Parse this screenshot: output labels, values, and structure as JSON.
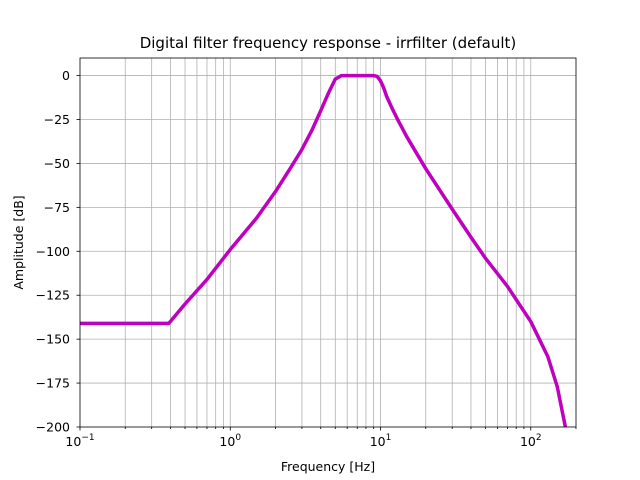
{
  "chart_data": {
    "type": "line",
    "title": "Digital filter frequency response - irrfilter (default)",
    "xlabel": "Frequency [Hz]",
    "ylabel": "Amplitude [dB]",
    "xscale": "log",
    "xlim": [
      0.1,
      200
    ],
    "ylim": [
      -200,
      10
    ],
    "grid": "on (major and minor on x, major on y)",
    "x_ticks": [
      {
        "value": 0.1,
        "base": "10",
        "exp": "−1"
      },
      {
        "value": 1,
        "base": "10",
        "exp": "0"
      },
      {
        "value": 10,
        "base": "10",
        "exp": "1"
      },
      {
        "value": 100,
        "base": "10",
        "exp": "2"
      }
    ],
    "y_ticks": [
      {
        "value": 0,
        "label": "0"
      },
      {
        "value": -25,
        "label": "−25"
      },
      {
        "value": -50,
        "label": "−50"
      },
      {
        "value": -75,
        "label": "−75"
      },
      {
        "value": -100,
        "label": "−100"
      },
      {
        "value": -125,
        "label": "−125"
      },
      {
        "value": -150,
        "label": "−150"
      },
      {
        "value": -175,
        "label": "−175"
      },
      {
        "value": -200,
        "label": "−200"
      }
    ],
    "series": [
      {
        "color": "#bf00bf",
        "x": [
          0.1,
          0.2,
          0.3,
          0.39,
          0.5,
          0.7,
          1.0,
          1.5,
          2.0,
          2.5,
          3.0,
          3.5,
          4.0,
          4.5,
          5.0,
          5.5,
          6.0,
          7.0,
          8.0,
          9.0,
          9.5,
          10.0,
          10.5,
          11.0,
          12.0,
          13.0,
          15.0,
          20.0,
          30.0,
          40.0,
          50.0,
          70.0,
          100.0,
          130.0,
          150.0,
          170.0
        ],
        "y": [
          -141,
          -141,
          -141,
          -141,
          -130,
          -116,
          -99,
          -81,
          -66,
          -53,
          -42,
          -31,
          -20,
          -10,
          -2,
          0,
          0,
          0,
          0,
          0,
          -0.5,
          -3,
          -7,
          -12,
          -19,
          -25,
          -35,
          -53,
          -76,
          -92,
          -104,
          -120,
          -140,
          -160,
          -177,
          -200
        ]
      }
    ]
  }
}
